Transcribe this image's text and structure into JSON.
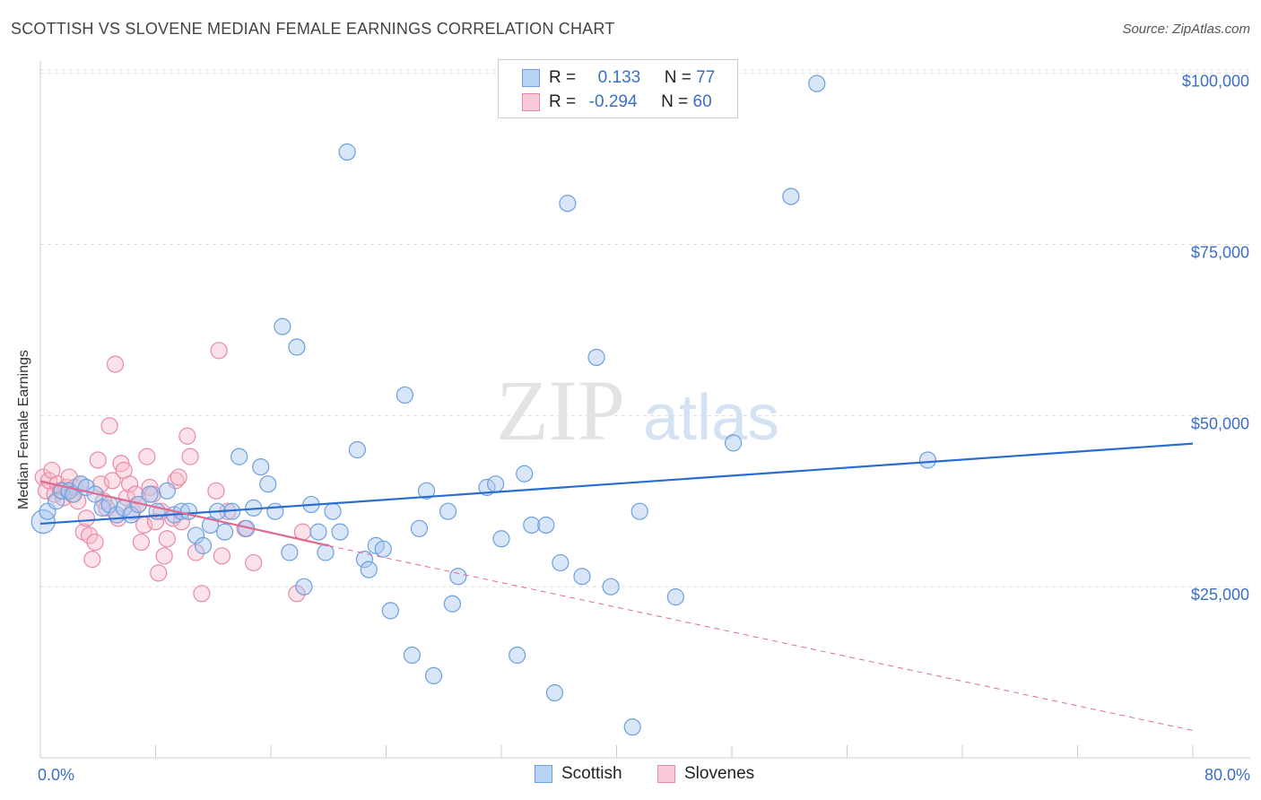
{
  "title": "SCOTTISH VS SLOVENE MEDIAN FEMALE EARNINGS CORRELATION CHART",
  "source": "Source: ZipAtlas.com",
  "watermark": {
    "zip": "ZIP",
    "atlas": "atlas"
  },
  "legend": {
    "rows": [
      {
        "r_label": "R =",
        "r_value": "0.133",
        "n_label": "N =",
        "n_value": "77"
      },
      {
        "r_label": "R =",
        "r_value": "-0.294",
        "n_label": "N =",
        "n_value": "60"
      }
    ]
  },
  "bottom_legend": {
    "scottish": "Scottish",
    "slovenes": "Slovenes"
  },
  "colors": {
    "blue_fill": "#a9c8f0",
    "blue_stroke": "#6d9fdc",
    "blue_line": "#2a6dd0",
    "pink_fill": "#f6bccd",
    "pink_stroke": "#e88aa6",
    "pink_line": "#e06a90",
    "tick_text": "#3a6fc4",
    "grid": "#dddddd"
  },
  "chart_data": {
    "type": "scatter",
    "title": "SCOTTISH VS SLOVENE MEDIAN FEMALE EARNINGS CORRELATION CHART",
    "xlabel": "",
    "ylabel": "Median Female Earnings",
    "xlim": [
      0,
      80
    ],
    "ylim": [
      0,
      105000
    ],
    "x_tick_labels": [
      "0.0%",
      "80.0%"
    ],
    "y_ticks": [
      25000,
      50000,
      75000,
      100000
    ],
    "y_tick_labels": [
      "$25,000",
      "$50,000",
      "$75,000",
      "$100,000"
    ],
    "grid": true,
    "legend_position": "top-center",
    "series": [
      {
        "name": "Scottish",
        "color": "#6d9fdc",
        "r": 0.133,
        "n": 77,
        "trend": {
          "x": [
            0,
            80
          ],
          "y": [
            34200,
            45900
          ]
        },
        "points": [
          [
            0.2,
            34500
          ],
          [
            0.5,
            36000
          ],
          [
            1.1,
            37500
          ],
          [
            1.5,
            39000
          ],
          [
            2.0,
            39000
          ],
          [
            2.3,
            38500
          ],
          [
            2.8,
            40000
          ],
          [
            3.2,
            39500
          ],
          [
            3.8,
            38500
          ],
          [
            4.3,
            36500
          ],
          [
            4.8,
            37000
          ],
          [
            5.3,
            35500
          ],
          [
            5.8,
            36500
          ],
          [
            6.3,
            35500
          ],
          [
            6.8,
            37000
          ],
          [
            7.6,
            38500
          ],
          [
            8.1,
            36000
          ],
          [
            8.8,
            39000
          ],
          [
            9.3,
            35500
          ],
          [
            9.8,
            36000
          ],
          [
            10.3,
            36000
          ],
          [
            10.8,
            32500
          ],
          [
            11.3,
            31000
          ],
          [
            11.8,
            34000
          ],
          [
            12.3,
            36000
          ],
          [
            12.8,
            33000
          ],
          [
            13.3,
            36000
          ],
          [
            13.8,
            44000
          ],
          [
            14.3,
            33500
          ],
          [
            14.8,
            36500
          ],
          [
            15.3,
            42500
          ],
          [
            15.8,
            40000
          ],
          [
            16.3,
            36000
          ],
          [
            16.8,
            63000
          ],
          [
            17.3,
            30000
          ],
          [
            17.8,
            60000
          ],
          [
            18.3,
            25000
          ],
          [
            18.8,
            37000
          ],
          [
            19.3,
            33000
          ],
          [
            19.8,
            30000
          ],
          [
            20.3,
            36000
          ],
          [
            20.8,
            33000
          ],
          [
            21.3,
            88500
          ],
          [
            22.0,
            45000
          ],
          [
            22.5,
            29000
          ],
          [
            22.8,
            27500
          ],
          [
            23.3,
            31000
          ],
          [
            23.8,
            30500
          ],
          [
            24.3,
            21500
          ],
          [
            25.3,
            53000
          ],
          [
            25.8,
            15000
          ],
          [
            26.3,
            33500
          ],
          [
            26.8,
            39000
          ],
          [
            27.3,
            12000
          ],
          [
            28.3,
            36000
          ],
          [
            28.6,
            22500
          ],
          [
            29.0,
            26500
          ],
          [
            31.0,
            39500
          ],
          [
            31.6,
            40000
          ],
          [
            32.0,
            32000
          ],
          [
            33.1,
            15000
          ],
          [
            33.6,
            41500
          ],
          [
            34.1,
            34000
          ],
          [
            35.1,
            34000
          ],
          [
            35.7,
            9500
          ],
          [
            36.1,
            28500
          ],
          [
            36.6,
            81000
          ],
          [
            37.6,
            26500
          ],
          [
            38.6,
            58500
          ],
          [
            39.6,
            25000
          ],
          [
            41.1,
            4500
          ],
          [
            41.6,
            36000
          ],
          [
            44.1,
            23500
          ],
          [
            48.1,
            46000
          ],
          [
            52.1,
            82000
          ],
          [
            53.9,
            98500
          ],
          [
            61.6,
            43500
          ]
        ]
      },
      {
        "name": "Slovenes",
        "color": "#e88aa6",
        "r": -0.294,
        "n": 60,
        "trend": {
          "x": [
            0,
            20
          ],
          "y": [
            40400,
            31000
          ]
        },
        "trend_extended": {
          "x": [
            20,
            80
          ],
          "y": [
            31000,
            4000
          ]
        },
        "points": [
          [
            0.2,
            41000
          ],
          [
            0.4,
            39000
          ],
          [
            0.6,
            40500
          ],
          [
            0.8,
            42000
          ],
          [
            1.0,
            38500
          ],
          [
            1.2,
            40000
          ],
          [
            1.4,
            39000
          ],
          [
            1.6,
            38000
          ],
          [
            1.8,
            39500
          ],
          [
            2.0,
            41000
          ],
          [
            2.2,
            38500
          ],
          [
            2.4,
            39500
          ],
          [
            2.6,
            37500
          ],
          [
            2.8,
            40000
          ],
          [
            3.0,
            33000
          ],
          [
            3.2,
            35000
          ],
          [
            3.4,
            32500
          ],
          [
            3.6,
            29000
          ],
          [
            3.8,
            31500
          ],
          [
            4.0,
            43500
          ],
          [
            4.2,
            40000
          ],
          [
            4.4,
            37500
          ],
          [
            4.6,
            36500
          ],
          [
            4.8,
            48500
          ],
          [
            5.0,
            40500
          ],
          [
            5.2,
            57500
          ],
          [
            5.4,
            35000
          ],
          [
            5.6,
            43000
          ],
          [
            5.8,
            42000
          ],
          [
            6.0,
            38000
          ],
          [
            6.2,
            40000
          ],
          [
            6.4,
            36000
          ],
          [
            6.6,
            38500
          ],
          [
            6.8,
            37000
          ],
          [
            7.0,
            31500
          ],
          [
            7.2,
            34000
          ],
          [
            7.4,
            44000
          ],
          [
            7.6,
            39500
          ],
          [
            7.8,
            38500
          ],
          [
            8.0,
            34500
          ],
          [
            8.2,
            27000
          ],
          [
            8.4,
            36000
          ],
          [
            8.6,
            29500
          ],
          [
            8.8,
            32000
          ],
          [
            9.2,
            35000
          ],
          [
            9.4,
            40500
          ],
          [
            9.6,
            41000
          ],
          [
            9.8,
            34500
          ],
          [
            10.2,
            47000
          ],
          [
            10.4,
            44000
          ],
          [
            10.8,
            30000
          ],
          [
            11.2,
            24000
          ],
          [
            12.2,
            39000
          ],
          [
            12.4,
            59500
          ],
          [
            12.6,
            29500
          ],
          [
            13.0,
            36000
          ],
          [
            14.2,
            33500
          ],
          [
            14.8,
            28500
          ],
          [
            17.8,
            24000
          ],
          [
            18.2,
            33000
          ]
        ]
      }
    ]
  }
}
